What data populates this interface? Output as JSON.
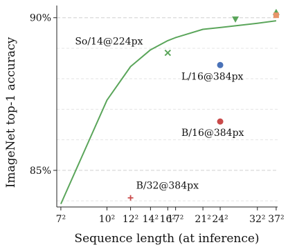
{
  "chart_data": {
    "type": "line",
    "title": "",
    "xlabel": "Sequence length (at inference)",
    "ylabel": "ImageNet top-1 accuracy",
    "x_scale": "log",
    "x_ticks": [
      {
        "value": 49,
        "label": "7²"
      },
      {
        "value": 100,
        "label": "10²"
      },
      {
        "value": 144,
        "label": "12²"
      },
      {
        "value": 196,
        "label": "14²"
      },
      {
        "value": 256,
        "label": "16²"
      },
      {
        "value": 289,
        "label": "17²"
      },
      {
        "value": 441,
        "label": "21²"
      },
      {
        "value": 576,
        "label": "24²"
      },
      {
        "value": 1024,
        "label": "32²"
      },
      {
        "value": 1369,
        "label": "37²"
      }
    ],
    "y_ticks": [
      {
        "value": 85,
        "label": "85%"
      },
      {
        "value": 90,
        "label": "90%"
      }
    ],
    "y_minor_gridlines": [
      84,
      86,
      87,
      88,
      89
    ],
    "xlim": [
      46,
      1400
    ],
    "ylim": [
      83.8,
      90.4
    ],
    "grid": "horizontal dashed",
    "series": [
      {
        "name": "",
        "color": "#5aa55a",
        "x": [
          49,
          100,
          144,
          196,
          256,
          289,
          441,
          576,
          1024,
          1369
        ],
        "y": [
          83.9,
          87.3,
          88.4,
          88.95,
          89.25,
          89.35,
          89.62,
          89.68,
          89.82,
          89.9
        ]
      }
    ],
    "points": [
      {
        "x": 144,
        "y": 84.1,
        "marker": "plus",
        "color": "#c94a4a",
        "label": "B/32@384px"
      },
      {
        "x": 576,
        "y": 86.6,
        "marker": "circle",
        "color": "#c94a4a",
        "label": "B/16@384px"
      },
      {
        "x": 576,
        "y": 88.45,
        "marker": "circle",
        "color": "#4a72b8",
        "label": "L/16@384px"
      },
      {
        "x": 256,
        "y": 88.85,
        "marker": "x",
        "color": "#5aa55a",
        "label": "So/14@224px"
      },
      {
        "x": 729,
        "y": 89.95,
        "marker": "triangle-down",
        "color": "#5aa55a",
        "label": ""
      },
      {
        "x": 1369,
        "y": 90.18,
        "marker": "triangle-up",
        "color": "#5aa55a",
        "label": ""
      },
      {
        "x": 1369,
        "y": 90.08,
        "marker": "square",
        "color": "#e8956b",
        "label": ""
      }
    ]
  }
}
